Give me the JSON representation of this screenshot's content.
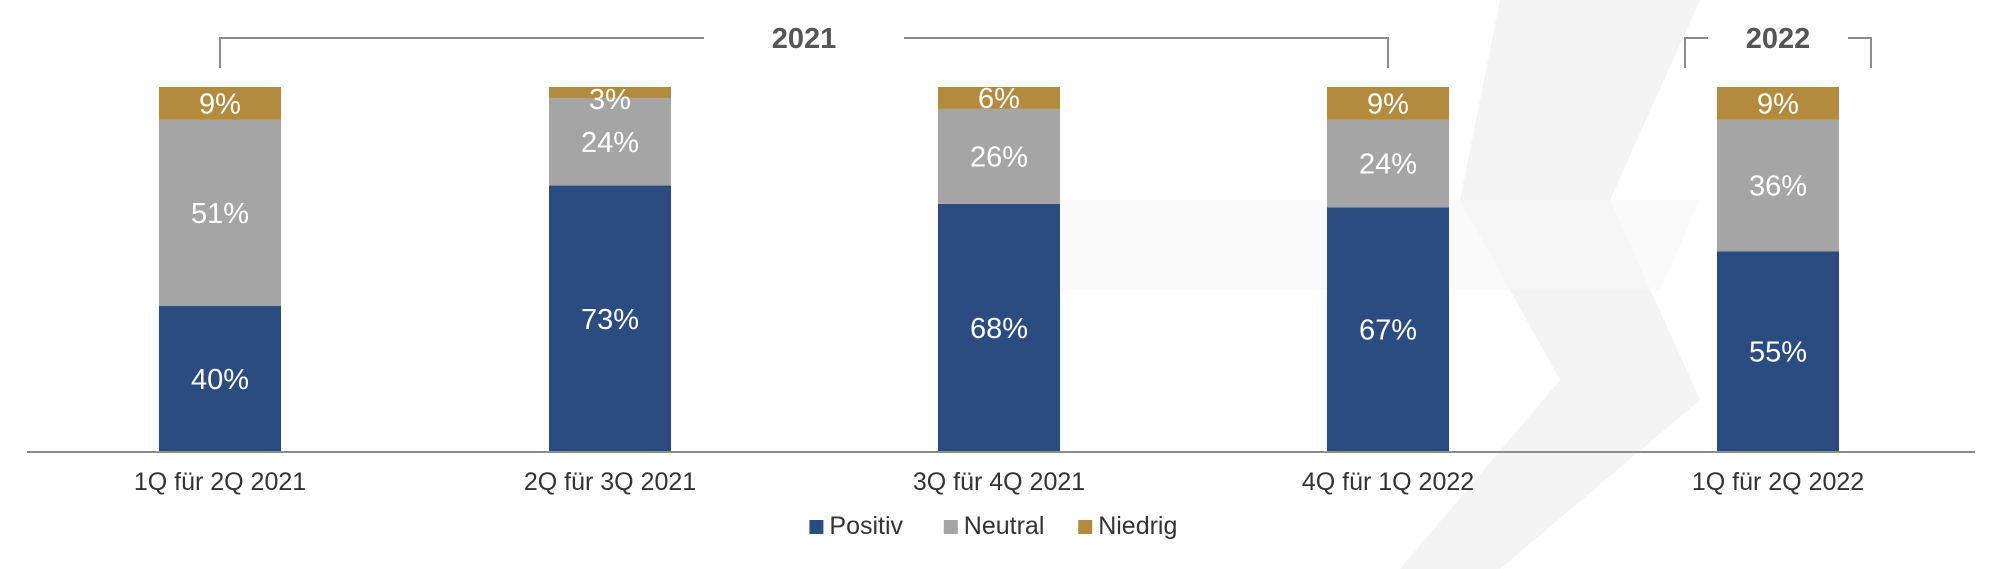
{
  "chart_data": {
    "type": "bar",
    "stacked": true,
    "categories": [
      "1Q für 2Q 2021",
      "2Q für 3Q 2021",
      "3Q für 4Q 2021",
      "4Q für 1Q 2022",
      "1Q für 2Q 2022"
    ],
    "series": [
      {
        "name": "Positiv",
        "values": [
          40,
          73,
          68,
          67,
          55
        ],
        "labels": [
          "40%",
          "73%",
          "68%",
          "67%",
          "55%"
        ],
        "color": "#2b4c80"
      },
      {
        "name": "Neutral",
        "values": [
          51,
          24,
          26,
          24,
          36
        ],
        "labels": [
          "51%",
          "24%",
          "26%",
          "24%",
          "36%"
        ],
        "color": "#a5a5a5"
      },
      {
        "name": "Niedrig",
        "values": [
          9,
          3,
          6,
          9,
          9
        ],
        "labels": [
          "9%",
          "3%",
          "6%",
          "9%",
          "9%"
        ],
        "color": "#b28b3e"
      }
    ],
    "groups": [
      {
        "label": "2021",
        "first": 0,
        "last": 3
      },
      {
        "label": "2022",
        "first": 4,
        "last": 4
      }
    ],
    "ylim": [
      0,
      100
    ],
    "grid": false,
    "legend": "bottom-center"
  }
}
